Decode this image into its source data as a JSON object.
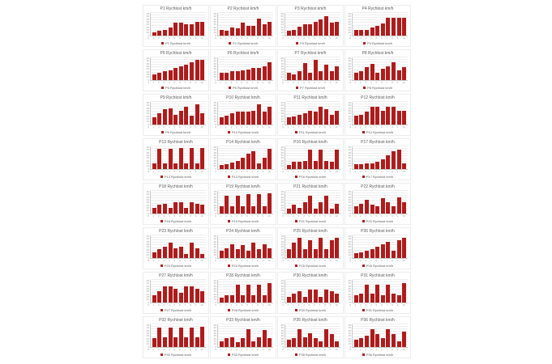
{
  "page": {
    "background": "#ffffff"
  },
  "colors": {
    "bar": "#ae1c1c",
    "chart_border": "#ececec",
    "gridline": "#ededed",
    "axis_line": "#c9c9c9",
    "title_text": "#595959",
    "tick_text": "#9a9a9a"
  },
  "axis": {
    "x_labels": [
      "1",
      "2",
      "3",
      "4",
      "5",
      "6",
      "7",
      "8",
      "9",
      "10"
    ],
    "y_ticks": [
      0,
      5,
      10,
      15,
      20,
      25,
      30,
      35,
      40,
      45
    ],
    "y_max": 45,
    "grid": true,
    "legend_position": "bottom"
  },
  "chart_data": [
    {
      "type": "bar",
      "title": "P1 Rychlost km/h",
      "legend": "P1 Rychlost km/h",
      "values": [
        6,
        10,
        12,
        16,
        26,
        26,
        22,
        22,
        28,
        28
      ]
    },
    {
      "type": "bar",
      "title": "P2 Rychlost km/h",
      "legend": "P2 Rychlost km/h",
      "values": [
        12,
        10,
        16,
        14,
        25,
        20,
        20,
        33,
        22,
        28
      ]
    },
    {
      "type": "bar",
      "title": "P3 Rychlost km/h",
      "legend": "P3 Rychlost km/h",
      "values": [
        10,
        12,
        18,
        22,
        22,
        28,
        32,
        38,
        25,
        28
      ]
    },
    {
      "type": "bar",
      "title": "P4 Rychlost km/h",
      "legend": "P4 Rychlost km/h",
      "values": [
        12,
        12,
        12,
        16,
        20,
        24,
        35,
        35,
        35,
        35
      ]
    },
    {
      "type": "bar",
      "title": "P5 Rychlost km/h",
      "legend": "P5 Rychlost km/h",
      "values": [
        12,
        14,
        17,
        20,
        24,
        27,
        31,
        36,
        40,
        40
      ]
    },
    {
      "type": "bar",
      "title": "P6 Rychlost km/h",
      "legend": "P6 Rychlost km/h",
      "values": [
        14,
        14,
        17,
        17,
        19,
        21,
        24,
        24,
        27,
        36
      ]
    },
    {
      "type": "bar",
      "title": "P7 Rychlost km/h",
      "legend": "P7 Rychlost km/h",
      "values": [
        15,
        12,
        18,
        34,
        15,
        40,
        18,
        30,
        18,
        28
      ]
    },
    {
      "type": "bar",
      "title": "P8 Rychlost km/h",
      "legend": "P8 Rychlost km/h",
      "values": [
        15,
        18,
        25,
        32,
        15,
        22,
        28,
        36,
        20,
        25
      ]
    },
    {
      "type": "bar",
      "title": "P9 Rychlost km/h",
      "legend": "P9 Rychlost km/h",
      "values": [
        15,
        22,
        30,
        32,
        20,
        28,
        35,
        18,
        40,
        22
      ]
    },
    {
      "type": "bar",
      "title": "P10 Rychlost km/h",
      "legend": "P10 Rychlost km/h",
      "values": [
        15,
        18,
        22,
        25,
        25,
        25,
        28,
        40,
        25,
        35
      ]
    },
    {
      "type": "bar",
      "title": "P11 Rychlost km/h",
      "legend": "P11 Rychlost km/h",
      "values": [
        14,
        16,
        20,
        22,
        28,
        25,
        35,
        30,
        20,
        28
      ]
    },
    {
      "type": "bar",
      "title": "P12 Rychlost km/h",
      "legend": "P12 Rychlost km/h",
      "values": [
        18,
        20,
        25,
        35,
        35,
        28,
        35,
        35,
        28,
        28
      ]
    },
    {
      "type": "bar",
      "title": "P13 Rychlost km/h",
      "legend": "P13 Rychlost km/h",
      "values": [
        12,
        40,
        12,
        40,
        12,
        42,
        12,
        42,
        12,
        42
      ]
    },
    {
      "type": "bar",
      "title": "P14 Rychlost km/h",
      "legend": "P14 Rychlost km/h",
      "values": [
        8,
        10,
        13,
        16,
        22,
        30,
        35,
        12,
        22,
        40
      ]
    },
    {
      "type": "bar",
      "title": "P16 Rychlost km/h",
      "legend": "P16 Rychlost km/h",
      "values": [
        8,
        14,
        14,
        16,
        38,
        16,
        38,
        16,
        14,
        38
      ]
    },
    {
      "type": "bar",
      "title": "P17 Rychlost km/h",
      "legend": "P17 Rychlost km/h",
      "values": [
        10,
        10,
        12,
        12,
        14,
        20,
        28,
        36,
        38,
        12
      ]
    },
    {
      "type": "bar",
      "title": "P18 Rychlost km/h",
      "legend": "P18 Rychlost km/h",
      "values": [
        12,
        18,
        20,
        12,
        22,
        22,
        12,
        22,
        20,
        18
      ]
    },
    {
      "type": "bar",
      "title": "P19 Rychlost km/h",
      "legend": "P19 Rychlost km/h",
      "values": [
        15,
        35,
        15,
        35,
        15,
        38,
        15,
        38,
        15,
        40
      ]
    },
    {
      "type": "bar",
      "title": "P21 Rychlost km/h",
      "legend": "P21 Rychlost km/h",
      "values": [
        10,
        18,
        12,
        22,
        35,
        10,
        22,
        35,
        10,
        20
      ]
    },
    {
      "type": "bar",
      "title": "P22 Rychlost km/h",
      "legend": "P22 Rychlost km/h",
      "values": [
        15,
        20,
        28,
        18,
        15,
        30,
        22,
        15,
        32,
        22
      ]
    },
    {
      "type": "bar",
      "title": "P23 Rychlost km/h",
      "legend": "P23 Rychlost km/h",
      "values": [
        12,
        18,
        22,
        30,
        20,
        22,
        8,
        30,
        20,
        8
      ]
    },
    {
      "type": "bar",
      "title": "P24 Rychlost km/h",
      "legend": "P24 Rychlost km/h",
      "values": [
        15,
        20,
        28,
        18,
        25,
        15,
        30,
        18,
        28,
        20
      ]
    },
    {
      "type": "bar",
      "title": "P25 Rychlost km/h",
      "legend": "P25 Rychlost km/h",
      "values": [
        18,
        30,
        40,
        18,
        35,
        18,
        40,
        18,
        35,
        40
      ]
    },
    {
      "type": "bar",
      "title": "P26 Rychlost km/h",
      "legend": "P26 Rychlost km/h",
      "values": [
        10,
        12,
        15,
        18,
        22,
        28,
        32,
        15,
        35,
        40
      ]
    },
    {
      "type": "bar",
      "title": "P27 Rychlost km/h",
      "legend": "P27 Rychlost km/h",
      "values": [
        15,
        22,
        32,
        32,
        28,
        20,
        32,
        32,
        28,
        22
      ]
    },
    {
      "type": "bar",
      "title": "P28 Rychlost km/h",
      "legend": "P28 Rychlost km/h",
      "values": [
        10,
        15,
        15,
        35,
        15,
        35,
        15,
        35,
        15,
        38
      ]
    },
    {
      "type": "bar",
      "title": "P30 Rychlost km/h",
      "legend": "P30 Rychlost km/h",
      "values": [
        12,
        18,
        22,
        12,
        25,
        25,
        12,
        25,
        22,
        18
      ]
    },
    {
      "type": "bar",
      "title": "P31 Rychlost km/h",
      "legend": "P31 Rychlost km/h",
      "values": [
        15,
        18,
        35,
        18,
        35,
        15,
        35,
        18,
        15,
        38
      ]
    },
    {
      "type": "bar",
      "title": "P32 Rychlost km/h",
      "legend": "P32 Rychlost km/h",
      "values": [
        18,
        38,
        20,
        38,
        20,
        38,
        20,
        38,
        20,
        40
      ]
    },
    {
      "type": "bar",
      "title": "P33 Rychlost km/h",
      "legend": "P33 Rychlost km/h",
      "values": [
        12,
        18,
        20,
        10,
        18,
        35,
        12,
        20,
        33,
        18
      ]
    },
    {
      "type": "bar",
      "title": "P35 Rychlost km/h",
      "legend": "P35 Rychlost km/h",
      "values": [
        15,
        18,
        35,
        20,
        28,
        18,
        12,
        35,
        25,
        12
      ]
    },
    {
      "type": "bar",
      "title": "P36 Rychlost km/h",
      "legend": "P36 Rychlost km/h",
      "values": [
        15,
        18,
        22,
        35,
        25,
        18,
        35,
        25,
        12,
        30
      ]
    }
  ]
}
